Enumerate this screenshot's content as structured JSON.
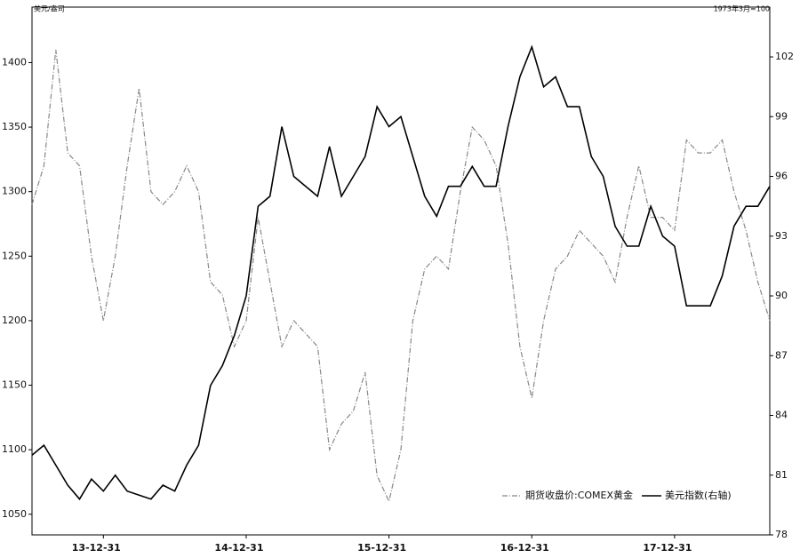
{
  "chart_data": {
    "type": "line",
    "y_label": "美元/盎司",
    "y2_label": "1973年3月=100",
    "categories": [
      null,
      null,
      null,
      null,
      null,
      null,
      "13-12-31",
      null,
      null,
      null,
      null,
      null,
      null,
      null,
      null,
      null,
      null,
      null,
      "14-12-31",
      null,
      null,
      null,
      null,
      null,
      null,
      null,
      null,
      null,
      null,
      null,
      "15-12-31",
      null,
      null,
      null,
      null,
      null,
      null,
      null,
      null,
      null,
      null,
      null,
      "16-12-31",
      null,
      null,
      null,
      null,
      null,
      null,
      null,
      null,
      null,
      null,
      null,
      "17-12-31",
      null,
      null,
      null,
      null,
      null,
      null,
      null,
      null
    ],
    "series": [
      {
        "name": "期货收盘价:COMEX黄金",
        "color": "#888888",
        "axis": "y",
        "values": [
          1290,
          1320,
          1410,
          1330,
          1320,
          1250,
          1200,
          1250,
          1320,
          1380,
          1300,
          1290,
          1300,
          1320,
          1300,
          1230,
          1220,
          1180,
          1200,
          1280,
          1230,
          1180,
          1200,
          1190,
          1180,
          1100,
          1120,
          1130,
          1160,
          1080,
          1060,
          1100,
          1200,
          1240,
          1250,
          1240,
          1300,
          1350,
          1340,
          1320,
          1260,
          1180,
          1140,
          1200,
          1240,
          1250,
          1270,
          1260,
          1250,
          1230,
          1280,
          1320,
          1280,
          1280,
          1270,
          1340,
          1330,
          1330,
          1340,
          1300,
          1270,
          1230,
          1200
        ]
      },
      {
        "name": "美元指数(右轴)",
        "color": "#000000",
        "axis": "y2",
        "values": [
          82,
          82.5,
          81.5,
          80.5,
          79.8,
          80.8,
          80.2,
          81,
          80.2,
          80,
          79.8,
          80.5,
          80.2,
          81.5,
          82.5,
          85.5,
          86.5,
          88,
          90,
          94.5,
          95,
          98.5,
          96,
          95.5,
          95,
          97.5,
          95,
          96,
          97,
          99.5,
          98.5,
          99,
          97,
          95,
          94,
          95.5,
          95.5,
          96.5,
          95.5,
          95.5,
          98.5,
          101,
          102.5,
          100.5,
          101,
          99.5,
          99.5,
          97,
          96,
          93.5,
          92.5,
          92.5,
          94.5,
          93,
          92.5,
          89.5,
          89.5,
          89.5,
          91,
          93.5,
          94.5,
          94.5,
          95.5
        ]
      }
    ],
    "ylim": [
      1034,
      1443
    ],
    "yticks": [
      1050,
      1100,
      1150,
      1200,
      1250,
      1300,
      1350,
      1400
    ],
    "y2lim": [
      78,
      104.5
    ],
    "y2ticks": [
      78,
      81,
      84,
      87,
      90,
      93,
      96,
      99,
      102
    ]
  }
}
